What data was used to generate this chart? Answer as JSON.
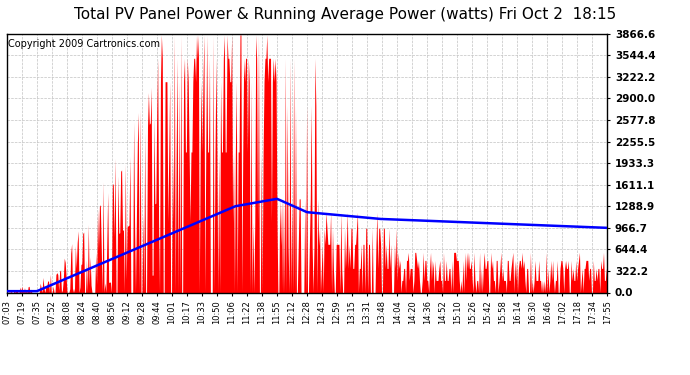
{
  "title": "Total PV Panel Power & Running Average Power (watts) Fri Oct 2  18:15",
  "copyright": "Copyright 2009 Cartronics.com",
  "y_max": 3866.6,
  "y_min": 0.0,
  "y_ticks": [
    0.0,
    322.2,
    644.4,
    966.7,
    1288.9,
    1611.1,
    1933.3,
    2255.5,
    2577.8,
    2900.0,
    3222.2,
    3544.4,
    3866.6
  ],
  "y_tick_labels": [
    "0.0",
    "322.2",
    "644.4",
    "966.7",
    "1288.9",
    "1611.1",
    "1933.3",
    "2255.5",
    "2577.8",
    "2900.0",
    "3222.2",
    "3544.4",
    "3866.6"
  ],
  "x_tick_labels": [
    "07:03",
    "07:19",
    "07:35",
    "07:52",
    "08:08",
    "08:24",
    "08:40",
    "08:56",
    "09:12",
    "09:28",
    "09:44",
    "10:01",
    "10:17",
    "10:33",
    "10:50",
    "11:06",
    "11:22",
    "11:38",
    "11:55",
    "12:12",
    "12:28",
    "12:43",
    "12:59",
    "13:15",
    "13:31",
    "13:48",
    "14:04",
    "14:20",
    "14:36",
    "14:52",
    "15:10",
    "15:26",
    "15:42",
    "15:58",
    "16:14",
    "16:30",
    "16:46",
    "17:02",
    "17:18",
    "17:34",
    "17:55"
  ],
  "background_color": "#ffffff",
  "plot_bg_color": "#ffffff",
  "grid_color": "#bbbbbb",
  "bar_color": "#ff0000",
  "line_color": "#0000ff",
  "title_fontsize": 11,
  "copyright_fontsize": 7
}
